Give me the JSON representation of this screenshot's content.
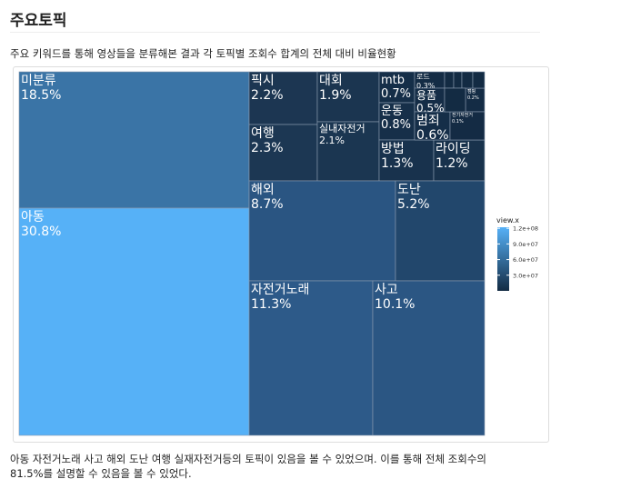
{
  "heading": "주요토픽",
  "intro": "주요 키워드를 통해 영상들을 분류해본 결과 각 토픽별 조회수 합계의 전체 대비 비율현황",
  "chart_data": {
    "type": "treemap",
    "items": [
      {
        "name": "미분류",
        "value": 18.5,
        "value_label": "18.5%",
        "color": "#3a74a6"
      },
      {
        "name": "아동",
        "value": 30.8,
        "value_label": "30.8%",
        "color": "#56b1f7"
      },
      {
        "name": "픽시",
        "value": 2.2,
        "value_label": "2.2%",
        "color": "#1c3652"
      },
      {
        "name": "여행",
        "value": 2.3,
        "value_label": "2.3%",
        "color": "#1c3753"
      },
      {
        "name": "대회",
        "value": 1.9,
        "value_label": "1.9%",
        "color": "#1b3550"
      },
      {
        "name": "실내자전거",
        "value": 2.1,
        "value_label": "2.1%",
        "color": "#1b3651"
      },
      {
        "name": "mtb",
        "value": 0.7,
        "value_label": "0.7%",
        "color": "#152e48"
      },
      {
        "name": "운동",
        "value": 0.8,
        "value_label": "0.8%",
        "color": "#162f49"
      },
      {
        "name": "방법",
        "value": 1.3,
        "value_label": "1.3%",
        "color": "#18324d"
      },
      {
        "name": "라이딩",
        "value": 1.2,
        "value_label": "1.2%",
        "color": "#18324c"
      },
      {
        "name": "로드",
        "value": 0.3,
        "value_label": "0.3%",
        "color": "#142c45"
      },
      {
        "name": "용품",
        "value": 0.5,
        "value_label": "0.5%",
        "color": "#152d47"
      },
      {
        "name": "범죄",
        "value": 0.6,
        "value_label": "0.6%",
        "color": "#152e48"
      },
      {
        "name": "캠핑",
        "value": 0.2,
        "value_label": "0.2%",
        "color": "#142c45"
      },
      {
        "name": "전기자전거",
        "value": 0.1,
        "value_label": "0.1%",
        "color": "#142b44"
      },
      {
        "name": "해외",
        "value": 8.7,
        "value_label": "8.7%",
        "color": "#2a5582"
      },
      {
        "name": "도난",
        "value": 5.2,
        "value_label": "5.2%",
        "color": "#22476c"
      },
      {
        "name": "자전거노래",
        "value": 11.3,
        "value_label": "11.3%",
        "color": "#2d5a89"
      },
      {
        "name": "사고",
        "value": 10.1,
        "value_label": "10.1%",
        "color": "#2b5683"
      }
    ],
    "colorbar_title": "view.x",
    "color_range": [
      "#132b43",
      "#56b1f7"
    ],
    "colorlim": [
      0,
      122000000
    ],
    "colorticks": [
      {
        "value": 120000000,
        "label": "1.2e+08"
      },
      {
        "value": 90000000,
        "label": "9.0e+07"
      },
      {
        "value": 60000000,
        "label": "6.0e+07"
      },
      {
        "value": 30000000,
        "label": "3.0e+07"
      }
    ]
  },
  "conclusion": [
    "아동 자전거노래 사고 해외 도난 여행 실재자전거등의 토픽이 있음을 볼 수 있었으며. 이를 통해 전체 조회수의",
    "81.5%를 설명할 수 있음을 볼 수 있었다."
  ]
}
